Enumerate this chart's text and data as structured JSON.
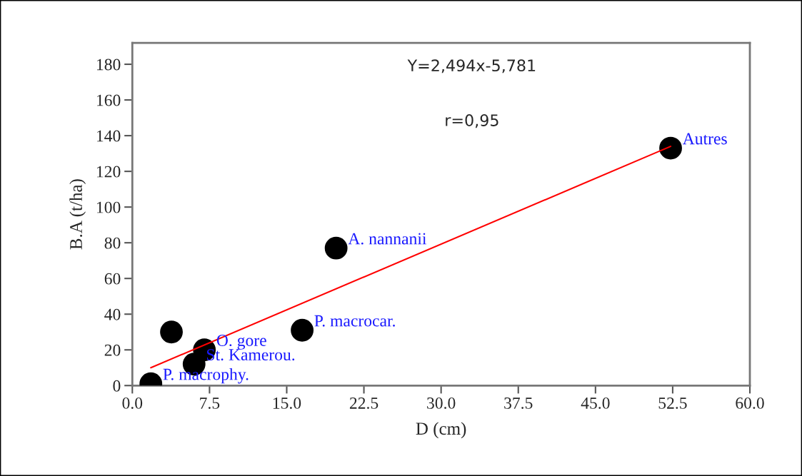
{
  "chart_data": {
    "type": "scatter",
    "xlabel": "D (cm)",
    "ylabel": "B.A (t/ha)",
    "xlim": [
      0,
      60
    ],
    "ylim": [
      0,
      192
    ],
    "xticks": [
      {
        "value": 0,
        "label": "0.0"
      },
      7.5,
      {
        "value": 15,
        "label": "15.0"
      },
      22.5,
      {
        "value": 30,
        "label": "30.0"
      },
      37.5,
      {
        "value": 45,
        "label": "45.0"
      },
      52.5,
      {
        "value": 60,
        "label": "60.0"
      }
    ],
    "yticks": [
      0,
      20,
      40,
      60,
      80,
      100,
      120,
      140,
      160,
      180
    ],
    "grid": false,
    "legend": false,
    "series": [
      {
        "color": "#000000",
        "marker": "circle",
        "x": [
          1.8,
          3.8,
          6.0,
          7.0,
          16.5,
          19.8,
          52.3
        ],
        "values": [
          1,
          30,
          12,
          20,
          31,
          77,
          133
        ]
      },
      {
        "type": "line",
        "color": "#ff0000",
        "line_style": "solid",
        "x": [
          1.8,
          52.3
        ],
        "values": [
          10,
          134
        ]
      }
    ],
    "annotations": [
      "Y=2,494x-5,781",
      "r=0,95",
      {
        "text": "P. macrophy.",
        "x": 1.8,
        "y": 1
      },
      {
        "text": "St. Kamerou.",
        "x": 6.0,
        "y": 12
      },
      {
        "text": "O. gore",
        "x": 7.0,
        "y": 20
      },
      {
        "text": "P. macrocar.",
        "x": 16.5,
        "y": 31
      },
      {
        "text": "A. nannanii",
        "x": 19.8,
        "y": 77
      },
      {
        "text": "Autres",
        "x": 52.3,
        "y": 133
      }
    ]
  }
}
